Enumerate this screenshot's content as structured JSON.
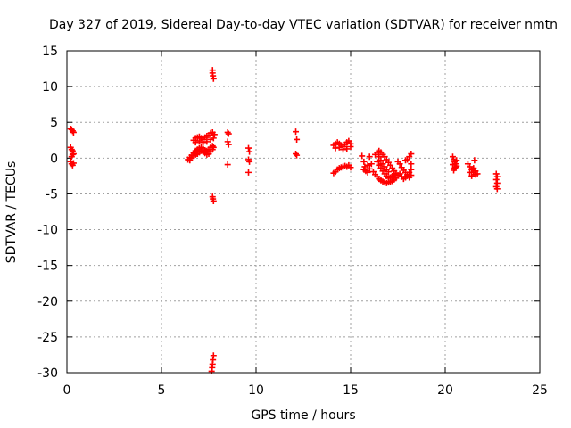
{
  "chart_data": {
    "type": "scatter",
    "title": "Day 327 of 2019, Sidereal Day-to-day VTEC variation (SDTVAR) for receiver nmtn",
    "xlabel": "GPS time / hours",
    "ylabel": "SDTVAR / TECUs",
    "xlim": [
      0,
      25
    ],
    "ylim": [
      -30,
      15
    ],
    "xticks": [
      0,
      5,
      10,
      15,
      20,
      25
    ],
    "yticks": [
      -30,
      -25,
      -20,
      -15,
      -10,
      -5,
      0,
      5,
      10,
      15
    ],
    "grid": true,
    "marker": "+",
    "series": [
      {
        "name": "SDTVAR",
        "color": "#ff0000",
        "points": [
          [
            0.2,
            4.1
          ],
          [
            0.25,
            4.0
          ],
          [
            0.3,
            3.8
          ],
          [
            0.35,
            3.6
          ],
          [
            0.2,
            1.5
          ],
          [
            0.25,
            1.2
          ],
          [
            0.3,
            1.0
          ],
          [
            0.35,
            0.6
          ],
          [
            0.25,
            0.2
          ],
          [
            0.3,
            0.5
          ],
          [
            0.2,
            -0.5
          ],
          [
            0.25,
            -0.8
          ],
          [
            0.3,
            -1.0
          ],
          [
            0.35,
            -0.7
          ],
          [
            6.4,
            -0.2
          ],
          [
            6.5,
            0.1
          ],
          [
            6.6,
            0.4
          ],
          [
            6.7,
            0.7
          ],
          [
            6.8,
            1.0
          ],
          [
            6.9,
            1.2
          ],
          [
            7.0,
            1.4
          ],
          [
            7.1,
            1.5
          ],
          [
            7.2,
            1.3
          ],
          [
            7.3,
            1.1
          ],
          [
            7.4,
            1.0
          ],
          [
            7.5,
            1.2
          ],
          [
            7.6,
            1.5
          ],
          [
            7.7,
            1.7
          ],
          [
            7.75,
            1.5
          ],
          [
            6.5,
            -0.3
          ],
          [
            6.6,
            0.0
          ],
          [
            6.7,
            0.3
          ],
          [
            6.8,
            0.5
          ],
          [
            6.9,
            0.6
          ],
          [
            7.0,
            0.8
          ],
          [
            7.1,
            1.0
          ],
          [
            7.2,
            0.9
          ],
          [
            7.3,
            0.7
          ],
          [
            7.4,
            0.5
          ],
          [
            7.5,
            0.6
          ],
          [
            7.6,
            0.9
          ],
          [
            7.7,
            1.2
          ],
          [
            6.7,
            2.5
          ],
          [
            6.8,
            2.8
          ],
          [
            6.9,
            2.9
          ],
          [
            7.0,
            3.0
          ],
          [
            7.1,
            2.8
          ],
          [
            7.2,
            2.6
          ],
          [
            7.3,
            2.9
          ],
          [
            7.4,
            3.1
          ],
          [
            7.5,
            3.2
          ],
          [
            7.6,
            3.5
          ],
          [
            7.7,
            3.6
          ],
          [
            7.8,
            3.3
          ],
          [
            6.8,
            2.2
          ],
          [
            7.0,
            2.4
          ],
          [
            7.2,
            2.2
          ],
          [
            7.4,
            2.3
          ],
          [
            7.6,
            2.6
          ],
          [
            7.75,
            2.8
          ],
          [
            7.7,
            12.3
          ],
          [
            7.7,
            11.9
          ],
          [
            7.72,
            11.5
          ],
          [
            7.75,
            11.1
          ],
          [
            7.7,
            -5.4
          ],
          [
            7.72,
            -5.7
          ],
          [
            7.75,
            -6.0
          ],
          [
            7.65,
            -29.8
          ],
          [
            7.68,
            -29.3
          ],
          [
            7.7,
            -28.8
          ],
          [
            7.72,
            -28.2
          ],
          [
            7.75,
            -27.6
          ],
          [
            8.5,
            3.6
          ],
          [
            8.55,
            3.4
          ],
          [
            8.5,
            2.3
          ],
          [
            8.55,
            1.9
          ],
          [
            8.5,
            -0.9
          ],
          [
            9.6,
            1.4
          ],
          [
            9.65,
            0.9
          ],
          [
            9.6,
            -0.2
          ],
          [
            9.65,
            -0.5
          ],
          [
            9.6,
            -2.0
          ],
          [
            12.1,
            3.7
          ],
          [
            12.15,
            2.6
          ],
          [
            12.1,
            0.6
          ],
          [
            12.15,
            0.4
          ],
          [
            14.1,
            1.8
          ],
          [
            14.2,
            2.0
          ],
          [
            14.3,
            2.2
          ],
          [
            14.4,
            2.0
          ],
          [
            14.5,
            1.8
          ],
          [
            14.6,
            1.6
          ],
          [
            14.7,
            1.9
          ],
          [
            14.8,
            2.2
          ],
          [
            14.9,
            2.4
          ],
          [
            15.0,
            2.0
          ],
          [
            14.2,
            1.4
          ],
          [
            14.4,
            1.5
          ],
          [
            14.6,
            1.2
          ],
          [
            14.8,
            1.3
          ],
          [
            15.0,
            1.6
          ],
          [
            14.1,
            -2.1
          ],
          [
            14.2,
            -1.9
          ],
          [
            14.3,
            -1.6
          ],
          [
            14.4,
            -1.4
          ],
          [
            14.5,
            -1.3
          ],
          [
            14.6,
            -1.2
          ],
          [
            14.7,
            -1.1
          ],
          [
            14.8,
            -1.2
          ],
          [
            14.9,
            -1.0
          ],
          [
            15.0,
            -1.3
          ],
          [
            15.6,
            0.3
          ],
          [
            15.7,
            -0.5
          ],
          [
            15.75,
            -1.2
          ],
          [
            15.8,
            -1.8
          ],
          [
            15.9,
            -2.0
          ],
          [
            16.0,
            -1.5
          ],
          [
            16.1,
            -0.8
          ],
          [
            16.0,
            0.2
          ],
          [
            15.9,
            -1.0
          ],
          [
            15.7,
            -1.6
          ],
          [
            16.2,
            -1.9
          ],
          [
            16.3,
            -2.3
          ],
          [
            16.4,
            -2.6
          ],
          [
            16.5,
            -2.9
          ],
          [
            16.6,
            -3.1
          ],
          [
            16.7,
            -3.3
          ],
          [
            16.8,
            -3.4
          ],
          [
            16.9,
            -3.5
          ],
          [
            17.0,
            -3.4
          ],
          [
            17.1,
            -3.3
          ],
          [
            17.2,
            -3.2
          ],
          [
            17.3,
            -3.0
          ],
          [
            17.4,
            -2.8
          ],
          [
            16.3,
            0.5
          ],
          [
            16.4,
            0.8
          ],
          [
            16.5,
            1.0
          ],
          [
            16.6,
            0.8
          ],
          [
            16.7,
            0.5
          ],
          [
            16.8,
            0.2
          ],
          [
            16.9,
            -0.2
          ],
          [
            17.0,
            -0.6
          ],
          [
            17.1,
            -1.0
          ],
          [
            17.2,
            -1.4
          ],
          [
            17.3,
            -1.8
          ],
          [
            17.4,
            -2.1
          ],
          [
            17.5,
            -2.4
          ],
          [
            16.4,
            -0.5
          ],
          [
            16.5,
            -1.0
          ],
          [
            16.6,
            -1.4
          ],
          [
            16.7,
            -1.8
          ],
          [
            16.8,
            -2.2
          ],
          [
            16.9,
            -2.5
          ],
          [
            17.0,
            -2.8
          ],
          [
            17.1,
            -2.7
          ],
          [
            17.2,
            -2.5
          ],
          [
            17.3,
            -2.3
          ],
          [
            16.5,
            0.2
          ],
          [
            16.6,
            -0.3
          ],
          [
            16.7,
            -0.8
          ],
          [
            16.8,
            -1.2
          ],
          [
            16.9,
            -1.6
          ],
          [
            17.0,
            -1.9
          ],
          [
            17.5,
            -0.5
          ],
          [
            17.6,
            -0.8
          ],
          [
            17.7,
            -1.3
          ],
          [
            17.8,
            -1.7
          ],
          [
            17.9,
            -2.0
          ],
          [
            18.0,
            -2.3
          ],
          [
            18.1,
            -2.0
          ],
          [
            18.2,
            -1.6
          ],
          [
            17.6,
            -2.2
          ],
          [
            17.7,
            -2.6
          ],
          [
            17.8,
            -2.9
          ],
          [
            17.9,
            -2.7
          ],
          [
            18.0,
            -2.5
          ],
          [
            18.1,
            -2.7
          ],
          [
            18.2,
            -2.4
          ],
          [
            18.2,
            0.6
          ],
          [
            18.1,
            0.2
          ],
          [
            18.0,
            -0.2
          ],
          [
            17.9,
            -0.3
          ],
          [
            18.2,
            -0.8
          ],
          [
            20.4,
            0.2
          ],
          [
            20.45,
            -0.2
          ],
          [
            20.5,
            -0.5
          ],
          [
            20.55,
            -0.8
          ],
          [
            20.6,
            -1.1
          ],
          [
            20.5,
            -1.4
          ],
          [
            20.4,
            -0.9
          ],
          [
            20.6,
            -0.3
          ],
          [
            20.45,
            -1.7
          ],
          [
            20.55,
            -1.3
          ],
          [
            21.2,
            -0.8
          ],
          [
            21.3,
            -1.2
          ],
          [
            21.4,
            -1.6
          ],
          [
            21.5,
            -2.0
          ],
          [
            21.6,
            -2.3
          ],
          [
            21.4,
            -2.5
          ],
          [
            21.3,
            -2.0
          ],
          [
            21.5,
            -1.4
          ],
          [
            21.6,
            -1.8
          ],
          [
            21.7,
            -2.2
          ],
          [
            21.55,
            -0.3
          ],
          [
            22.7,
            -2.2
          ],
          [
            22.75,
            -2.6
          ],
          [
            22.7,
            -3.0
          ],
          [
            22.75,
            -3.5
          ],
          [
            22.7,
            -4.0
          ],
          [
            22.75,
            -4.3
          ]
        ]
      }
    ]
  }
}
